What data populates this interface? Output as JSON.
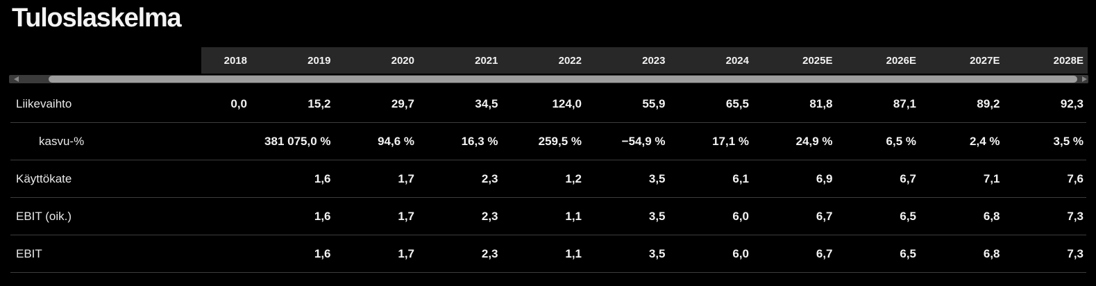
{
  "page": {
    "title": "Tuloslaskelma"
  },
  "colors": {
    "background": "#000000",
    "header_band": "#282828",
    "row_divider": "#3d3d3d",
    "text_primary": "#f2f2f2",
    "text_label": "#e9e9e9",
    "scrollbar_track": "#3b3b3b",
    "scrollbar_thumb": "#9e9e9e",
    "scrollbar_arrow": "#868686"
  },
  "scrollbar": {
    "orientation": "horizontal",
    "left_arrow_icon": "triangle-left",
    "right_arrow_icon": "triangle-right"
  },
  "table": {
    "columns": [
      "2018",
      "2019",
      "2020",
      "2021",
      "2022",
      "2023",
      "2024",
      "2025E",
      "2026E",
      "2027E",
      "2028E"
    ],
    "rows": [
      {
        "label": "Liikevaihto",
        "indent": false,
        "values": [
          "0,0",
          "15,2",
          "29,7",
          "34,5",
          "124,0",
          "55,9",
          "65,5",
          "81,8",
          "87,1",
          "89,2",
          "92,3"
        ]
      },
      {
        "label": "kasvu-%",
        "indent": true,
        "values": [
          "",
          "381 075,0 %",
          "94,6 %",
          "16,3 %",
          "259,5 %",
          "−54,9 %",
          "17,1 %",
          "24,9 %",
          "6,5 %",
          "2,4 %",
          "3,5 %"
        ]
      },
      {
        "label": "Käyttökate",
        "indent": false,
        "values": [
          "",
          "1,6",
          "1,7",
          "2,3",
          "1,2",
          "3,5",
          "6,1",
          "6,9",
          "6,7",
          "7,1",
          "7,6"
        ]
      },
      {
        "label": "EBIT (oik.)",
        "indent": false,
        "values": [
          "",
          "1,6",
          "1,7",
          "2,3",
          "1,1",
          "3,5",
          "6,0",
          "6,7",
          "6,5",
          "6,8",
          "7,3"
        ]
      },
      {
        "label": "EBIT",
        "indent": false,
        "values": [
          "",
          "1,6",
          "1,7",
          "2,3",
          "1,1",
          "3,5",
          "6,0",
          "6,7",
          "6,5",
          "6,8",
          "7,3"
        ]
      }
    ]
  }
}
